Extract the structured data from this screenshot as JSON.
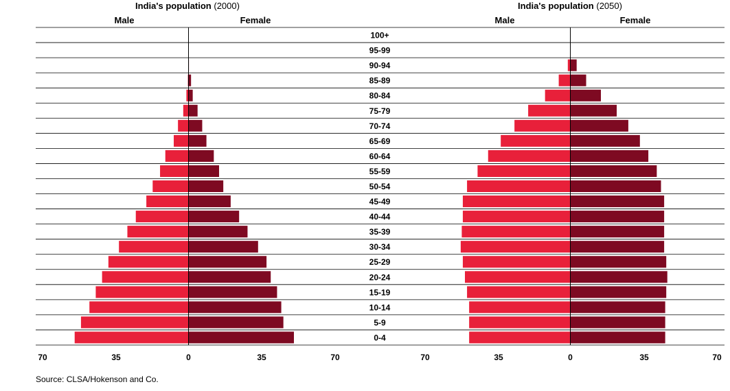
{
  "colors": {
    "male": "#e8203a",
    "female": "#7e0a22",
    "grid": "#000000"
  },
  "source": "Source: CLSA/Hokenson and Co.",
  "chart_data": [
    {
      "type": "bar",
      "subtype": "population-pyramid",
      "title_main": "India's population",
      "title_year": "(2000)",
      "left_label": "Male",
      "right_label": "Female",
      "xlim": [
        -70,
        70
      ],
      "x_ticks": [
        "70",
        "35",
        "0",
        "35",
        "70"
      ],
      "categories": [
        "0-4",
        "5-9",
        "10-14",
        "15-19",
        "20-24",
        "25-29",
        "30-34",
        "35-39",
        "40-44",
        "45-49",
        "50-54",
        "55-59",
        "60-64",
        "65-69",
        "70-74",
        "75-79",
        "80-84",
        "85-89",
        "90-94",
        "95-99",
        "100+"
      ],
      "series": [
        {
          "name": "Male",
          "values": [
            54,
            51,
            47,
            44,
            41,
            38,
            33,
            29,
            25,
            20,
            17,
            13.5,
            11,
            7,
            5,
            2.5,
            1,
            0.3,
            0.1,
            0,
            0
          ]
        },
        {
          "name": "Female",
          "values": [
            50,
            45,
            44,
            42,
            39,
            37,
            33,
            28,
            24,
            20,
            16.5,
            14.5,
            12,
            8.5,
            6.5,
            4.3,
            2,
            1.2,
            0.2,
            0,
            0
          ]
        }
      ]
    },
    {
      "type": "bar",
      "subtype": "population-pyramid",
      "title_main": "India's population",
      "title_year": "(2050)",
      "left_label": "Male",
      "right_label": "Female",
      "xlim": [
        -70,
        70
      ],
      "x_ticks": [
        "70",
        "35",
        "0",
        "35",
        "70"
      ],
      "categories": [
        "0-4",
        "5-9",
        "10-14",
        "15-19",
        "20-24",
        "25-29",
        "30-34",
        "35-39",
        "40-44",
        "45-49",
        "50-54",
        "55-59",
        "60-64",
        "65-69",
        "70-74",
        "75-79",
        "80-84",
        "85-89",
        "90-94",
        "95-99",
        "100+"
      ],
      "series": [
        {
          "name": "Male",
          "values": [
            48,
            48,
            48,
            49,
            50,
            51,
            52,
            51.5,
            51,
            51,
            49,
            44,
            39,
            33,
            26.5,
            20,
            12,
            5.5,
            1.2,
            0,
            0
          ]
        },
        {
          "name": "Female",
          "values": [
            45,
            45,
            45,
            45.5,
            46,
            45.5,
            44.5,
            44.5,
            44.5,
            44.5,
            43,
            41,
            37,
            33,
            27.5,
            22,
            14.5,
            7.5,
            3,
            0,
            0
          ]
        }
      ]
    }
  ]
}
